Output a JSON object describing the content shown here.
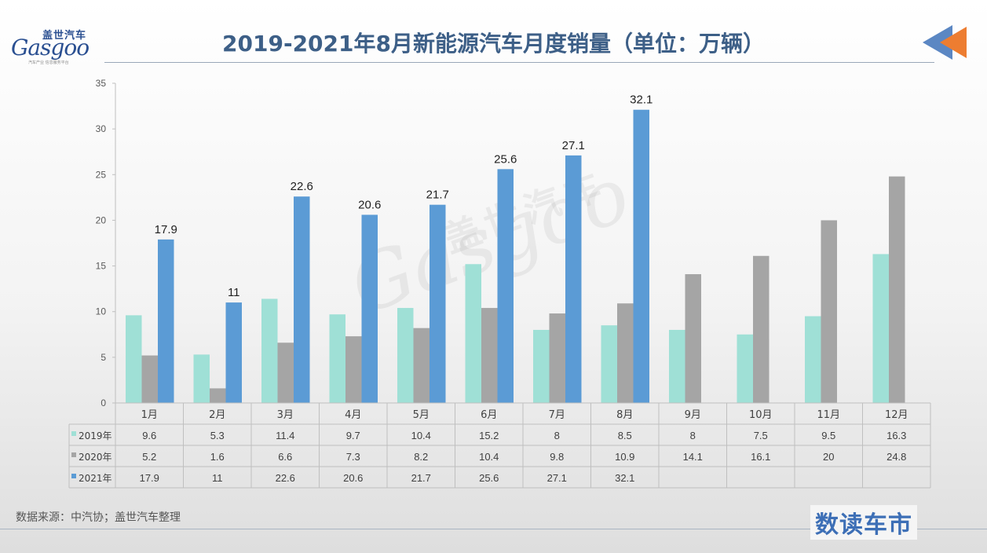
{
  "logo": {
    "cn": "盖世汽车",
    "en": "Gasgoo",
    "sub": "汽车产业 信息服务平台"
  },
  "title": "2019-2021年8月新能源汽车月度销量（单位：万辆）",
  "source": "数据来源：中汽协；盖世汽车整理",
  "brand": "数读车市",
  "colors": {
    "2019": "#9fe0d6",
    "2020": "#a5a5a5",
    "2021": "#5b9bd5",
    "title": "#3d5f87",
    "arrow_blue": "#5b87c3",
    "arrow_orange": "#ed7d31"
  },
  "chart_data": {
    "type": "bar",
    "categories": [
      "1月",
      "2月",
      "3月",
      "4月",
      "5月",
      "6月",
      "7月",
      "8月",
      "9月",
      "10月",
      "11月",
      "12月"
    ],
    "series": [
      {
        "name": "2019年",
        "values": [
          9.6,
          5.3,
          11.4,
          9.7,
          10.4,
          15.2,
          8,
          8.5,
          8,
          7.5,
          9.5,
          16.3
        ]
      },
      {
        "name": "2020年",
        "values": [
          5.2,
          1.6,
          6.6,
          7.3,
          8.2,
          10.4,
          9.8,
          10.9,
          14.1,
          16.1,
          20,
          24.8
        ]
      },
      {
        "name": "2021年",
        "values": [
          17.9,
          11,
          22.6,
          20.6,
          21.7,
          25.6,
          27.1,
          32.1,
          null,
          null,
          null,
          null
        ]
      }
    ],
    "ylim": [
      0,
      35
    ],
    "yticks": [
      0,
      5,
      10,
      15,
      20,
      25,
      30,
      35
    ],
    "data_labels_series": "2021年",
    "grid": false,
    "legend": "data-table"
  }
}
